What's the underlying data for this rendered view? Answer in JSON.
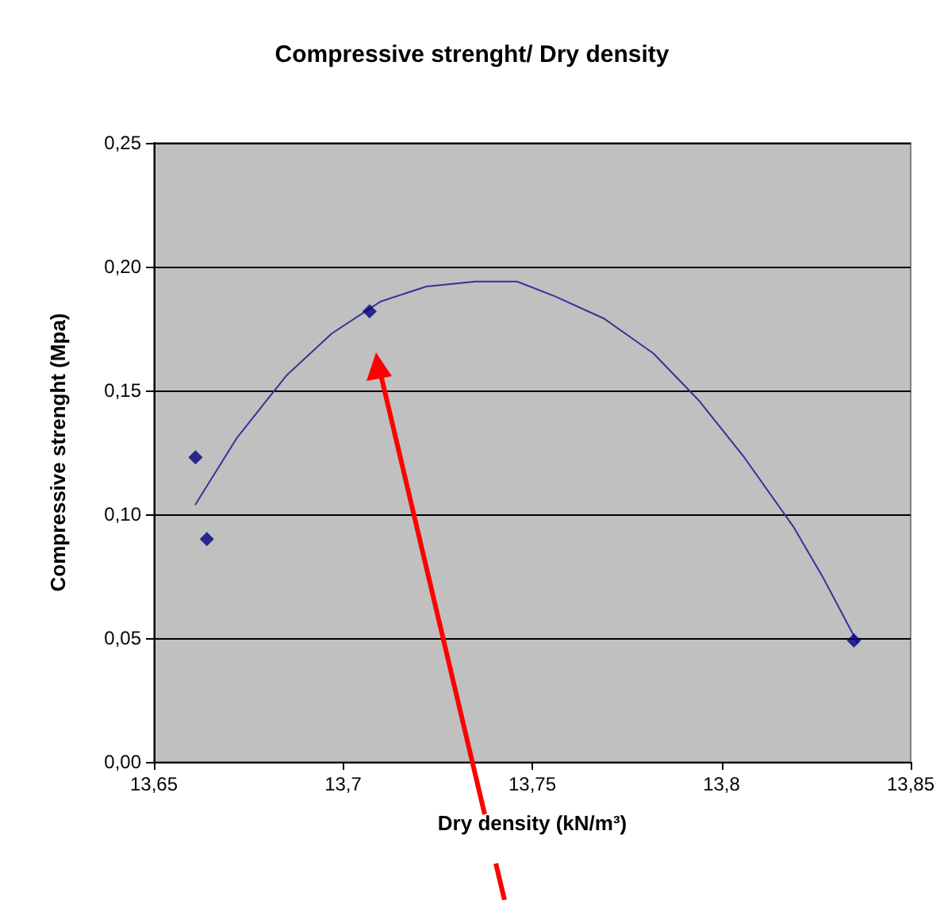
{
  "chart_data": {
    "type": "scatter",
    "title": "Compressive strenght/ Dry density",
    "xlabel": "Dry density (kN/m³)",
    "ylabel": "Compressive strenght (Mpa)",
    "series": [
      {
        "color": "#000080",
        "marker": "diamond",
        "x": [
          13.661,
          13.664,
          13.707,
          13.835
        ],
        "values": [
          0.123,
          0.09,
          0.182,
          0.049
        ]
      },
      {
        "type": "line",
        "color": "#333399",
        "marker": "none",
        "x": [
          13.661,
          13.672,
          13.685,
          13.697,
          13.71,
          13.722,
          13.735,
          13.746,
          13.756,
          13.769,
          13.782,
          13.794,
          13.806,
          13.819,
          13.827,
          13.836
        ],
        "values": [
          0.104,
          0.131,
          0.156,
          0.173,
          0.186,
          0.192,
          0.194,
          0.194,
          0.188,
          0.179,
          0.165,
          0.146,
          0.123,
          0.095,
          0.074,
          0.048
        ]
      }
    ],
    "xlim": [
      13.65,
      13.85
    ],
    "xticks": [
      {
        "value": 13.65,
        "label": "13,65"
      },
      {
        "value": 13.7,
        "label": "13,7"
      },
      {
        "value": 13.75,
        "label": "13,75"
      },
      {
        "value": 13.8,
        "label": "13,8"
      },
      {
        "value": 13.85,
        "label": "13,85"
      }
    ],
    "ylim": [
      0,
      0.25
    ],
    "yticks": [
      {
        "value": 0,
        "label": "0,00"
      },
      {
        "value": 0.05,
        "label": "0,05"
      },
      {
        "value": 0.1,
        "label": "0,10"
      },
      {
        "value": 0.15,
        "label": "0,15"
      },
      {
        "value": 0.2,
        "label": "0,20"
      },
      {
        "value": 0.25,
        "label": "0,25"
      }
    ],
    "grid": "y"
  }
}
